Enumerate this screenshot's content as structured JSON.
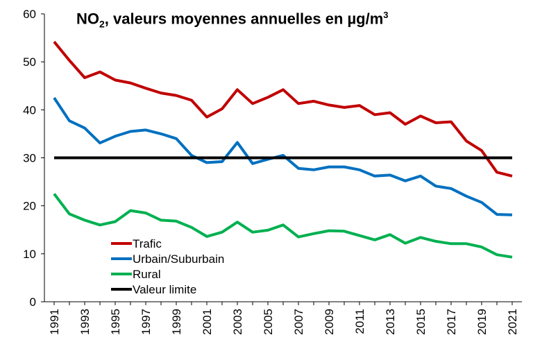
{
  "chart_data": {
    "type": "line",
    "title": "NO2, valeurs moyennes annuelles en µg/m3",
    "title_parts": {
      "main": "NO",
      "sub": "2",
      "rest": ", valeurs moyennes annuelles en µg/m",
      "sup": "3"
    },
    "xlabel": "",
    "ylabel": "",
    "ylim": [
      0,
      60
    ],
    "yticks": [
      0,
      10,
      20,
      30,
      40,
      50,
      60
    ],
    "xlim": [
      1991,
      2021
    ],
    "xtick_labels": [
      "1991",
      "1993",
      "1995",
      "1997",
      "1999",
      "2001",
      "2003",
      "2005",
      "2007",
      "2009",
      "2011",
      "2013",
      "2015",
      "2017",
      "2019",
      "2021"
    ],
    "grid": false,
    "legend_position": "bottom-left",
    "x": [
      1991,
      1992,
      1993,
      1994,
      1995,
      1996,
      1997,
      1998,
      1999,
      2000,
      2001,
      2002,
      2003,
      2004,
      2005,
      2006,
      2007,
      2008,
      2009,
      2010,
      2011,
      2012,
      2013,
      2014,
      2015,
      2016,
      2017,
      2018,
      2019,
      2020,
      2021
    ],
    "series": [
      {
        "name": "Trafic",
        "color": "#c00000",
        "values": [
          54.2,
          50.3,
          46.7,
          47.9,
          46.2,
          45.6,
          44.5,
          43.5,
          43.0,
          42.0,
          38.5,
          40.2,
          44.2,
          41.3,
          42.6,
          44.2,
          41.3,
          41.8,
          41.0,
          40.5,
          40.9,
          39.0,
          39.4,
          37.0,
          38.7,
          37.3,
          37.5,
          33.5,
          31.5,
          27.0,
          26.2
        ]
      },
      {
        "name": "Urbain/Suburbain",
        "color": "#0070c0",
        "values": [
          42.5,
          37.7,
          36.2,
          33.1,
          34.5,
          35.5,
          35.8,
          35.0,
          34.0,
          30.5,
          29.0,
          29.2,
          33.2,
          28.8,
          29.7,
          30.5,
          27.8,
          27.5,
          28.1,
          28.1,
          27.5,
          26.2,
          26.4,
          25.2,
          26.2,
          24.1,
          23.6,
          22.0,
          20.7,
          18.2,
          18.1
        ]
      },
      {
        "name": "Rural",
        "color": "#00b050",
        "values": [
          22.5,
          18.3,
          17.0,
          16.0,
          16.7,
          19.0,
          18.5,
          17.0,
          16.8,
          15.5,
          13.6,
          14.5,
          16.6,
          14.5,
          14.9,
          16.0,
          13.5,
          14.2,
          14.8,
          14.7,
          13.8,
          12.9,
          14.0,
          12.2,
          13.4,
          12.6,
          12.1,
          12.1,
          11.4,
          9.8,
          9.3
        ]
      },
      {
        "name": "Valeur limite",
        "color": "#000000",
        "values": [
          30,
          30,
          30,
          30,
          30,
          30,
          30,
          30,
          30,
          30,
          30,
          30,
          30,
          30,
          30,
          30,
          30,
          30,
          30,
          30,
          30,
          30,
          30,
          30,
          30,
          30,
          30,
          30,
          30,
          30,
          30
        ]
      }
    ]
  }
}
